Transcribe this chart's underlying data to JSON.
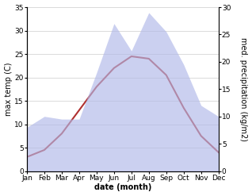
{
  "months": [
    "Jan",
    "Feb",
    "Mar",
    "Apr",
    "May",
    "Jun",
    "Jul",
    "Aug",
    "Sep",
    "Oct",
    "Nov",
    "Dec"
  ],
  "temp": [
    3.0,
    4.5,
    8.0,
    13.0,
    18.0,
    22.0,
    24.5,
    24.0,
    20.5,
    13.5,
    7.5,
    4.0
  ],
  "precip": [
    8.0,
    10.0,
    9.5,
    9.5,
    18.0,
    27.0,
    22.0,
    29.0,
    25.5,
    19.5,
    12.0,
    10.0
  ],
  "temp_ylim": [
    0,
    35
  ],
  "precip_ylim": [
    0,
    30
  ],
  "temp_yticks": [
    0,
    5,
    10,
    15,
    20,
    25,
    30,
    35
  ],
  "precip_yticks": [
    0,
    5,
    10,
    15,
    20,
    25,
    30
  ],
  "xlabel": "date (month)",
  "ylabel_left": "max temp (C)",
  "ylabel_right": "med. precipitation (kg/m2)",
  "line_color": "#b03030",
  "fill_color": "#b0b8e8",
  "fill_alpha": 0.65,
  "background_color": "#ffffff",
  "title_fontsize": 7.0,
  "label_fontsize": 7.0,
  "tick_fontsize": 6.5
}
